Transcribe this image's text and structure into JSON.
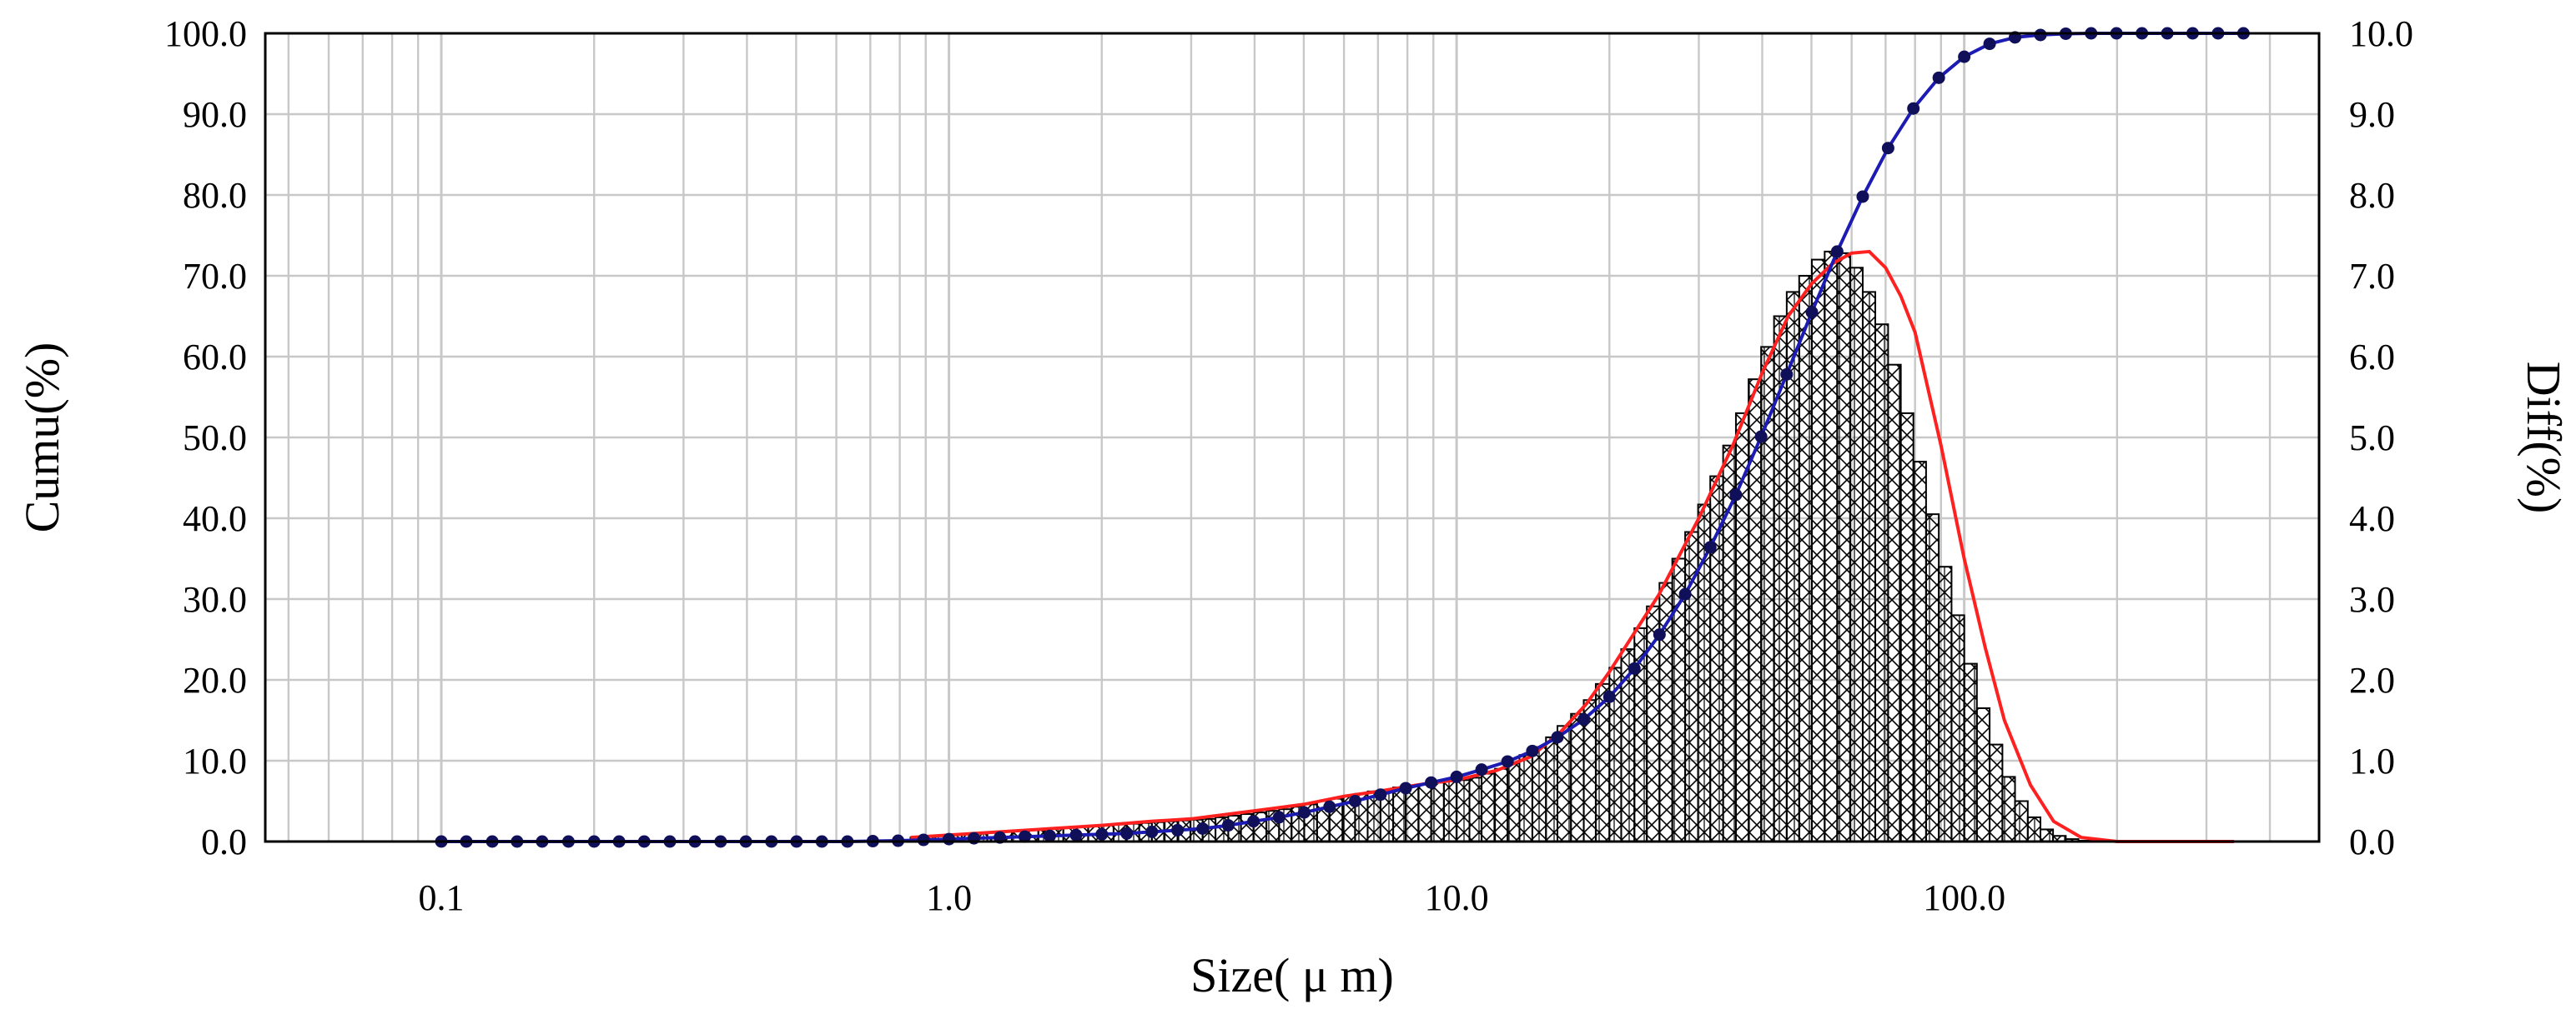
{
  "chart_data": {
    "type": "bar",
    "title": "",
    "xlabel": "Size( μ m)",
    "ylabel_left": "Cumu(%)",
    "ylabel_right": "Diff(%)",
    "x_scale": "log",
    "xlim": [
      0.045,
      500
    ],
    "ylim_left": [
      0,
      100
    ],
    "ylim_right": [
      0,
      10
    ],
    "grid": true,
    "legend": "none",
    "x_ticks": [
      {
        "value": 0.1,
        "label": "0.1"
      },
      {
        "value": 1,
        "label": "1.0"
      },
      {
        "value": 10,
        "label": "10.0"
      },
      {
        "value": 100,
        "label": "100.0"
      }
    ],
    "y_ticks_left": [
      {
        "value": 0,
        "label": "0.0"
      },
      {
        "value": 10,
        "label": "10.0"
      },
      {
        "value": 20,
        "label": "20.0"
      },
      {
        "value": 30,
        "label": "30.0"
      },
      {
        "value": 40,
        "label": "40.0"
      },
      {
        "value": 50,
        "label": "50.0"
      },
      {
        "value": 60,
        "label": "60.0"
      },
      {
        "value": 70,
        "label": "70.0"
      },
      {
        "value": 80,
        "label": "80.0"
      },
      {
        "value": 90,
        "label": "90.0"
      },
      {
        "value": 100,
        "label": "100.0"
      }
    ],
    "y_ticks_right": [
      {
        "value": 0,
        "label": "0.0"
      },
      {
        "value": 1,
        "label": "1.0"
      },
      {
        "value": 2,
        "label": "2.0"
      },
      {
        "value": 3,
        "label": "3.0"
      },
      {
        "value": 4,
        "label": "4.0"
      },
      {
        "value": 5,
        "label": "5.0"
      },
      {
        "value": 6,
        "label": "6.0"
      },
      {
        "value": 7,
        "label": "7.0"
      },
      {
        "value": 8,
        "label": "8.0"
      },
      {
        "value": 9,
        "label": "9.0"
      },
      {
        "value": 10,
        "label": "10.0"
      }
    ],
    "colors": {
      "cumulative_line": "#1c1cb4",
      "cumulative_marker": "#10105a",
      "differential_line": "#ff2020",
      "bars_hatch": "#000000",
      "grid": "#c8c8c8"
    },
    "differential": {
      "axis": "right",
      "x": [
        0.84,
        0.89,
        0.94,
        1.0,
        1.06,
        1.12,
        1.19,
        1.26,
        1.33,
        1.41,
        1.5,
        1.58,
        1.68,
        1.78,
        1.88,
        2.0,
        2.11,
        2.24,
        2.37,
        2.51,
        2.66,
        2.82,
        2.99,
        3.16,
        3.35,
        3.55,
        3.76,
        3.98,
        4.22,
        4.47,
        4.73,
        5.01,
        5.31,
        5.62,
        5.96,
        6.31,
        6.68,
        7.08,
        7.5,
        7.94,
        8.41,
        8.91,
        9.44,
        10.0,
        10.6,
        11.2,
        11.9,
        12.6,
        13.3,
        14.1,
        15.0,
        15.8,
        16.8,
        17.8,
        18.8,
        20.0,
        21.1,
        22.4,
        23.7,
        25.1,
        26.6,
        28.2,
        29.9,
        31.6,
        33.5,
        35.5,
        37.6,
        39.8,
        42.2,
        44.7,
        47.3,
        50.1,
        53.1,
        56.2,
        59.6,
        63.1,
        66.8,
        70.8,
        75.0,
        79.4,
        84.1,
        89.1,
        94.4,
        100.0,
        105.9,
        112.2,
        118.9,
        125.9,
        133.4,
        141.3,
        149.6,
        158.5,
        167.9,
        177.8,
        188.4,
        199.5,
        211.3,
        223.9,
        237.1
      ],
      "values": [
        0.05,
        0.06,
        0.07,
        0.08,
        0.09,
        0.1,
        0.11,
        0.12,
        0.13,
        0.14,
        0.15,
        0.16,
        0.17,
        0.18,
        0.19,
        0.2,
        0.21,
        0.22,
        0.23,
        0.24,
        0.25,
        0.26,
        0.27,
        0.28,
        0.3,
        0.32,
        0.34,
        0.36,
        0.38,
        0.4,
        0.43,
        0.46,
        0.5,
        0.53,
        0.56,
        0.59,
        0.62,
        0.64,
        0.67,
        0.69,
        0.71,
        0.73,
        0.75,
        0.76,
        0.79,
        0.84,
        0.9,
        0.98,
        1.07,
        1.17,
        1.29,
        1.43,
        1.58,
        1.75,
        1.95,
        2.15,
        2.38,
        2.64,
        2.91,
        3.2,
        3.5,
        3.83,
        4.17,
        4.52,
        4.9,
        5.3,
        5.72,
        6.12,
        6.5,
        6.8,
        7.0,
        7.2,
        7.3,
        7.28,
        7.1,
        6.8,
        6.4,
        5.9,
        5.3,
        4.7,
        4.05,
        3.4,
        2.8,
        2.2,
        1.65,
        1.2,
        0.8,
        0.5,
        0.3,
        0.15,
        0.07,
        0.03,
        0.01,
        0.0,
        0.0,
        0.0,
        0.0,
        0.0,
        0.0
      ]
    },
    "differential_curve": {
      "axis": "right",
      "x": [
        0.84,
        1.0,
        1.5,
        2.0,
        2.5,
        3.0,
        4.0,
        5.0,
        6.0,
        7.0,
        8.0,
        9.0,
        10.0,
        12.0,
        14.0,
        16.0,
        18.0,
        20.0,
        25.0,
        30.0,
        35.0,
        40.0,
        45.0,
        50.0,
        55.0,
        60.0,
        65.0,
        70.0,
        75.0,
        80.0,
        90.0,
        100.0,
        110.0,
        120.0,
        135.0,
        150.0,
        170.0,
        200.0,
        240.0,
        280.0,
        340.0
      ],
      "values": [
        0.05,
        0.08,
        0.15,
        0.2,
        0.25,
        0.28,
        0.38,
        0.46,
        0.56,
        0.62,
        0.68,
        0.73,
        0.76,
        0.88,
        1.05,
        1.35,
        1.7,
        2.1,
        3.05,
        4.0,
        4.9,
        5.8,
        6.5,
        6.9,
        7.15,
        7.28,
        7.3,
        7.1,
        6.75,
        6.3,
        4.9,
        3.5,
        2.4,
        1.5,
        0.7,
        0.25,
        0.05,
        0.0,
        0.0,
        0.0,
        0.0
      ]
    },
    "cumulative": {
      "axis": "left",
      "x": [
        0.1,
        0.112,
        0.126,
        0.141,
        0.158,
        0.178,
        0.2,
        0.224,
        0.251,
        0.282,
        0.316,
        0.355,
        0.398,
        0.447,
        0.501,
        0.562,
        0.631,
        0.708,
        0.794,
        0.891,
        1.0,
        1.12,
        1.26,
        1.41,
        1.58,
        1.78,
        2.0,
        2.24,
        2.51,
        2.82,
        3.16,
        3.55,
        3.98,
        4.47,
        5.01,
        5.62,
        6.31,
        7.08,
        7.94,
        8.91,
        10.0,
        11.2,
        12.6,
        14.1,
        15.8,
        17.8,
        20.0,
        22.4,
        25.1,
        28.2,
        31.6,
        35.5,
        39.8,
        44.7,
        50.1,
        56.2,
        63.1,
        70.8,
        79.4,
        89.1,
        100.0,
        112.2,
        125.9,
        141.3,
        158.5,
        177.8,
        199.5,
        223.9,
        251.2,
        281.8,
        316.2,
        354.8
      ],
      "values": [
        0,
        0,
        0,
        0,
        0,
        0,
        0,
        0,
        0,
        0,
        0,
        0,
        0,
        0,
        0,
        0,
        0,
        0.05,
        0.1,
        0.2,
        0.3,
        0.4,
        0.5,
        0.6,
        0.7,
        0.8,
        0.9,
        1.0,
        1.2,
        1.4,
        1.6,
        2.0,
        2.5,
        3.0,
        3.6,
        4.3,
        5.0,
        5.8,
        6.6,
        7.3,
        8.0,
        8.9,
        9.9,
        11.2,
        12.9,
        15.1,
        17.9,
        21.4,
        25.6,
        30.6,
        36.4,
        42.9,
        50.1,
        57.8,
        65.5,
        73.0,
        79.8,
        85.8,
        90.7,
        94.5,
        97.1,
        98.7,
        99.5,
        99.8,
        99.95,
        100,
        100,
        100,
        100,
        100,
        100,
        100
      ]
    }
  }
}
